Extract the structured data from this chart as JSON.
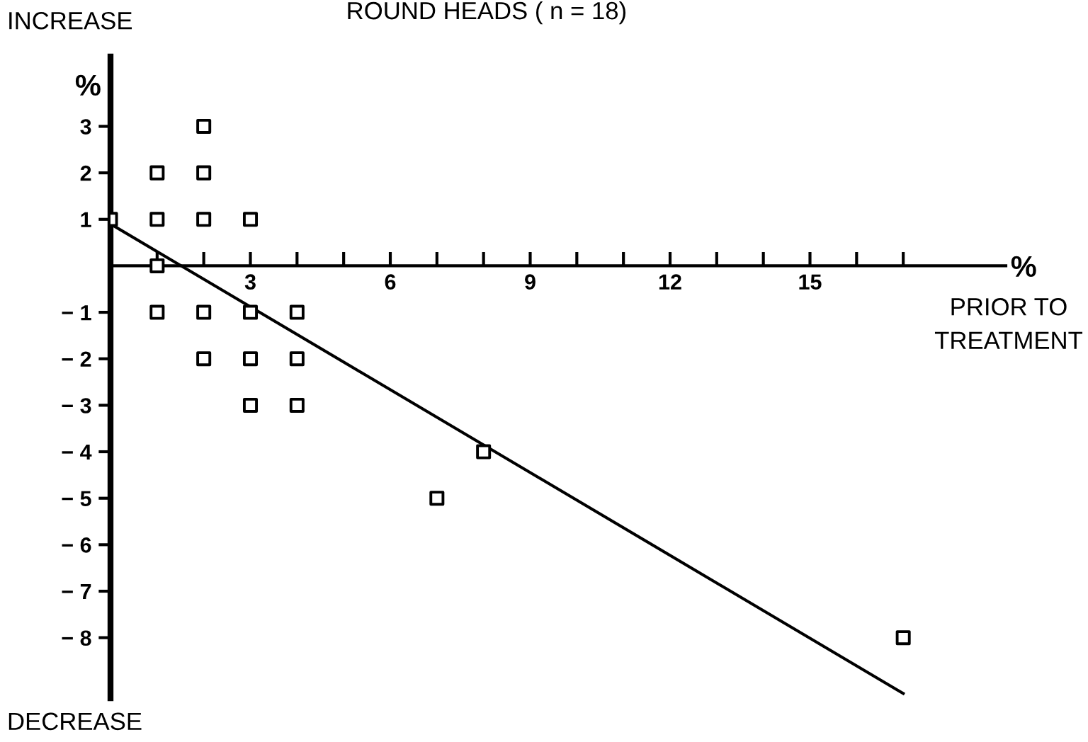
{
  "chart_data": {
    "type": "scatter",
    "title": "ROUND HEADS ( n = 18)",
    "xlabel": "%",
    "ylabel": "%",
    "annotations": [
      "INCREASE",
      "DECREASE",
      "PRIOR TO\nTREATMENT"
    ],
    "series": [
      {
        "color": "#000000",
        "marker": "square",
        "x": [
          0,
          1,
          1,
          2,
          2,
          2,
          3,
          1,
          1,
          2,
          3,
          4,
          2,
          3,
          4,
          3,
          4,
          8,
          7,
          17
        ],
        "values": [
          1,
          2,
          1,
          3,
          2,
          1,
          1,
          0,
          -1,
          -1,
          -1,
          -1,
          -2,
          -2,
          -2,
          -3,
          -3,
          -4,
          -5,
          -8
        ]
      },
      {
        "type": "line",
        "color": "#000000",
        "line_style": "solid",
        "x": [
          0,
          17
        ],
        "values": [
          0.9,
          -9.2
        ]
      }
    ],
    "xlim": [
      0,
      19.2
    ],
    "ylim": [
      -9.3,
      4.5
    ],
    "xticks": [
      {
        "value": 1,
        "label": null
      },
      {
        "value": 2,
        "label": null
      },
      3,
      {
        "value": 4,
        "label": null
      },
      {
        "value": 5,
        "label": null
      },
      6,
      {
        "value": 7,
        "label": null
      },
      {
        "value": 8,
        "label": null
      },
      9,
      {
        "value": 10,
        "label": null
      },
      {
        "value": 11,
        "label": null
      },
      12,
      {
        "value": 13,
        "label": null
      },
      {
        "value": 14,
        "label": null
      },
      15,
      {
        "value": 16,
        "label": null
      },
      {
        "value": 17,
        "label": null
      }
    ],
    "yticks": [
      {
        "value": -8,
        "label": "− 8"
      },
      {
        "value": -7,
        "label": "− 7"
      },
      {
        "value": -6,
        "label": "− 6"
      },
      {
        "value": -5,
        "label": "− 5"
      },
      {
        "value": -4,
        "label": "− 4"
      },
      {
        "value": -3,
        "label": "− 3"
      },
      {
        "value": -2,
        "label": "− 2"
      },
      {
        "value": -1,
        "label": "− 1"
      },
      1,
      2,
      3
    ],
    "grid": false,
    "legend": false
  }
}
